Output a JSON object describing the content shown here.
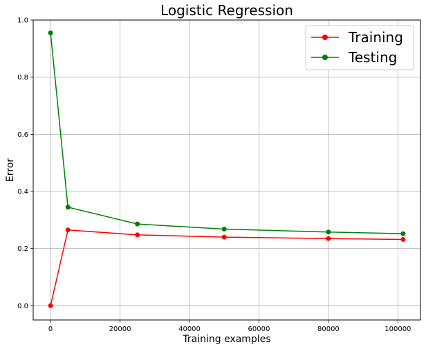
{
  "chart_data": {
    "type": "line",
    "title": "Logistic Regression",
    "xlabel": "Training examples",
    "ylabel": "Error",
    "xlim": [
      -5000,
      106500
    ],
    "ylim": [
      -0.05,
      1.0
    ],
    "x_ticks": [
      0,
      20000,
      40000,
      60000,
      80000,
      100000
    ],
    "x_tick_labels": [
      "0",
      "20000",
      "40000",
      "60000",
      "80000",
      "100000"
    ],
    "y_ticks": [
      0.0,
      0.2,
      0.4,
      0.6,
      0.8,
      1.0
    ],
    "y_tick_labels": [
      "0.0",
      "0.2",
      "0.4",
      "0.6",
      "0.8",
      "1.0"
    ],
    "grid": true,
    "legend_position": "top-right",
    "series": [
      {
        "name": "Training",
        "color": "#ff0000",
        "x": [
          0,
          5000,
          25000,
          50000,
          80000,
          101500
        ],
        "y": [
          0.0,
          0.265,
          0.248,
          0.24,
          0.235,
          0.232
        ]
      },
      {
        "name": "Testing",
        "color": "#008000",
        "x": [
          0,
          5000,
          25000,
          50000,
          80000,
          101500
        ],
        "y": [
          0.955,
          0.345,
          0.286,
          0.268,
          0.258,
          0.252
        ]
      }
    ]
  }
}
